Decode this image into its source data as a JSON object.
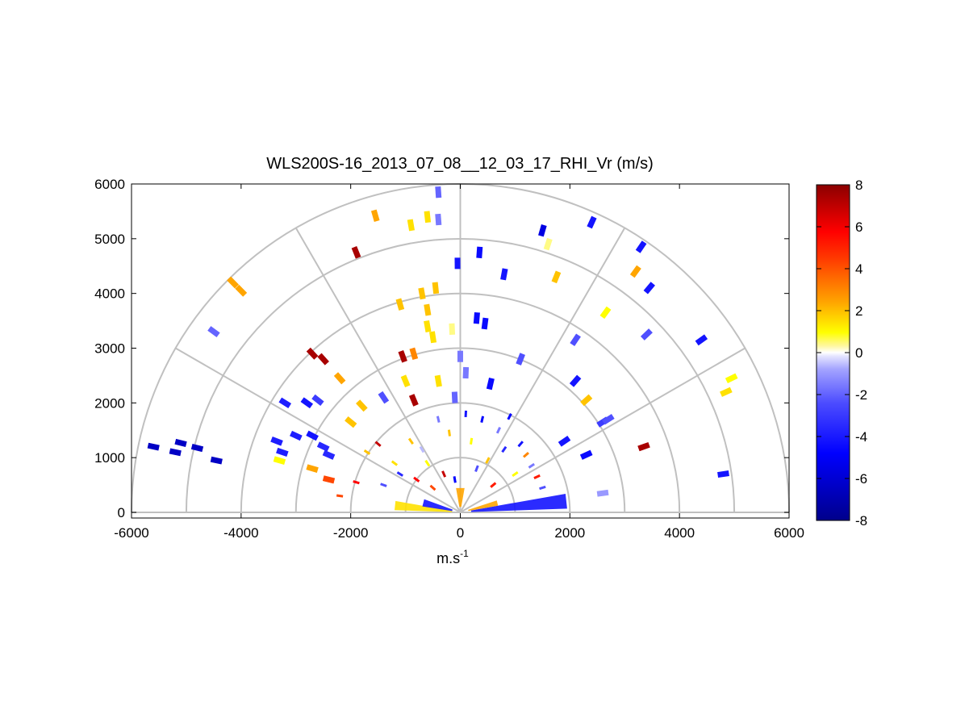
{
  "chart_data": {
    "type": "scatter",
    "subtype": "polar-rhi",
    "title": "WLS200S-16_2013_07_08__12_03_17_RHI_Vr (m/s)",
    "xlabel": "m.s",
    "xlabel_sup": "-1",
    "ylabel": "",
    "xlim": [
      -6000,
      6000
    ],
    "ylim": [
      0,
      6000
    ],
    "x_ticks": [
      "-6000",
      "-4000",
      "-2000",
      "0",
      "2000",
      "4000",
      "6000"
    ],
    "y_ticks": [
      "0",
      "1000",
      "2000",
      "3000",
      "4000",
      "5000",
      "6000"
    ],
    "range_rings": [
      1000,
      2000,
      3000,
      4000,
      5000,
      6000
    ],
    "spokes_deg": [
      0,
      30,
      60,
      90,
      120,
      150,
      180
    ],
    "colorbar": {
      "min": -8,
      "max": 8,
      "ticks": [
        "8",
        "6",
        "4",
        "2",
        "0",
        "-2",
        "-4",
        "-6",
        "-8"
      ],
      "colors": [
        "#00008b",
        "#0000ff",
        "#3f3fff",
        "#8a8aff",
        "#d9d9ff",
        "#ffffff",
        "#ffff00",
        "#ffa500",
        "#ff6a00",
        "#ff0000",
        "#8b0000"
      ]
    },
    "points": [
      {
        "x": -5600,
        "y": 1200,
        "v": -7
      },
      {
        "x": -5200,
        "y": 1100,
        "v": -7
      },
      {
        "x": -5100,
        "y": 1270,
        "v": -7
      },
      {
        "x": -4800,
        "y": 1180,
        "v": -7
      },
      {
        "x": -4450,
        "y": 950,
        "v": -7
      },
      {
        "x": -4500,
        "y": 3300,
        "v": -2.5
      },
      {
        "x": -4000,
        "y": 4050,
        "v": 2.5
      },
      {
        "x": -4150,
        "y": 4200,
        "v": 2.5
      },
      {
        "x": -3350,
        "y": 1300,
        "v": -4.5
      },
      {
        "x": -3250,
        "y": 1100,
        "v": -4.5
      },
      {
        "x": -3300,
        "y": 950,
        "v": 1
      },
      {
        "x": -3200,
        "y": 2000,
        "v": -4.5
      },
      {
        "x": -3000,
        "y": 1400,
        "v": -4.5
      },
      {
        "x": -2800,
        "y": 2000,
        "v": -5
      },
      {
        "x": -2700,
        "y": 1400,
        "v": -5
      },
      {
        "x": -2500,
        "y": 1200,
        "v": -4
      },
      {
        "x": -2400,
        "y": 1050,
        "v": -4
      },
      {
        "x": -2700,
        "y": 2900,
        "v": 7.5
      },
      {
        "x": -2500,
        "y": 2800,
        "v": 7.5
      },
      {
        "x": -2200,
        "y": 2450,
        "v": 2.5
      },
      {
        "x": -2700,
        "y": 800,
        "v": 2.5
      },
      {
        "x": -2400,
        "y": 600,
        "v": 4
      },
      {
        "x": -1900,
        "y": 4750,
        "v": 7.5
      },
      {
        "x": -1550,
        "y": 5420,
        "v": 2.5
      },
      {
        "x": -900,
        "y": 5250,
        "v": 1.5
      },
      {
        "x": -600,
        "y": 5400,
        "v": 1.5
      },
      {
        "x": -400,
        "y": 5350,
        "v": -2
      },
      {
        "x": -400,
        "y": 5850,
        "v": -2.5
      },
      {
        "x": -1100,
        "y": 3800,
        "v": 2
      },
      {
        "x": -700,
        "y": 4000,
        "v": 2
      },
      {
        "x": -450,
        "y": 4100,
        "v": 2
      },
      {
        "x": -600,
        "y": 3700,
        "v": 2
      },
      {
        "x": -600,
        "y": 3400,
        "v": 1.5
      },
      {
        "x": -500,
        "y": 3200,
        "v": 1.5
      },
      {
        "x": -1050,
        "y": 2850,
        "v": 7.5
      },
      {
        "x": -850,
        "y": 2900,
        "v": 3
      },
      {
        "x": -150,
        "y": 3350,
        "v": 0.5
      },
      {
        "x": -1000,
        "y": 2400,
        "v": 1.5
      },
      {
        "x": -400,
        "y": 2400,
        "v": 1.5
      },
      {
        "x": -1800,
        "y": 1950,
        "v": 2
      },
      {
        "x": -1400,
        "y": 2100,
        "v": -3
      },
      {
        "x": -2000,
        "y": 1650,
        "v": 2
      },
      {
        "x": -2600,
        "y": 2050,
        "v": -3.5
      },
      {
        "x": -850,
        "y": 2050,
        "v": 7.5
      },
      {
        "x": -100,
        "y": 2100,
        "v": -2.5
      },
      {
        "x": 100,
        "y": 2550,
        "v": -2
      },
      {
        "x": 550,
        "y": 2350,
        "v": -5.5
      },
      {
        "x": 0,
        "y": 2850,
        "v": -2
      },
      {
        "x": 300,
        "y": 3550,
        "v": -5.5
      },
      {
        "x": 450,
        "y": 3450,
        "v": -5.5
      },
      {
        "x": -50,
        "y": 4550,
        "v": -5
      },
      {
        "x": 350,
        "y": 4750,
        "v": -5.5
      },
      {
        "x": 800,
        "y": 4350,
        "v": -5
      },
      {
        "x": 1500,
        "y": 5150,
        "v": -6.5
      },
      {
        "x": 1600,
        "y": 4900,
        "v": 0.5
      },
      {
        "x": 1750,
        "y": 4300,
        "v": 2
      },
      {
        "x": 1100,
        "y": 2800,
        "v": -3
      },
      {
        "x": 2100,
        "y": 2400,
        "v": -5
      },
      {
        "x": 2300,
        "y": 2050,
        "v": 2
      },
      {
        "x": 2100,
        "y": 3150,
        "v": -3
      },
      {
        "x": 2650,
        "y": 3650,
        "v": 1
      },
      {
        "x": 2400,
        "y": 5300,
        "v": -5
      },
      {
        "x": 3300,
        "y": 4850,
        "v": -5
      },
      {
        "x": 3200,
        "y": 4400,
        "v": 2.5
      },
      {
        "x": 3450,
        "y": 4100,
        "v": -5
      },
      {
        "x": 3400,
        "y": 3250,
        "v": -3
      },
      {
        "x": 2600,
        "y": 1650,
        "v": -3.5
      },
      {
        "x": 2700,
        "y": 1700,
        "v": -3
      },
      {
        "x": 1900,
        "y": 1300,
        "v": -5
      },
      {
        "x": 2300,
        "y": 1050,
        "v": -5.5
      },
      {
        "x": 2600,
        "y": 350,
        "v": -1.5
      },
      {
        "x": 3350,
        "y": 1200,
        "v": 7.5
      },
      {
        "x": 4400,
        "y": 3150,
        "v": -5
      },
      {
        "x": 4850,
        "y": 2200,
        "v": 1.5
      },
      {
        "x": 4950,
        "y": 2450,
        "v": 1
      },
      {
        "x": 4800,
        "y": 700,
        "v": -5
      }
    ],
    "near_field": {
      "x": [
        -2200,
        -1900,
        -1700,
        -1500,
        -1400,
        -1200,
        -1100,
        -900,
        -800,
        -700,
        -600,
        -500,
        -400,
        -300,
        -200,
        -100,
        100,
        200,
        300,
        400,
        500,
        600,
        700,
        800,
        900,
        1000,
        1100,
        1200,
        1300,
        1400,
        1500
      ],
      "y": [
        300,
        550,
        1100,
        1250,
        500,
        900,
        700,
        1300,
        600,
        1150,
        900,
        450,
        1700,
        700,
        1450,
        600,
        1800,
        1300,
        800,
        1700,
        950,
        500,
        1500,
        1150,
        1750,
        700,
        1250,
        1050,
        850,
        650,
        450
      ],
      "v": [
        4,
        6,
        2,
        7,
        -3,
        1.5,
        -4,
        2,
        6,
        -1,
        1,
        4,
        -2,
        7,
        2,
        -6,
        -5,
        1,
        -3,
        -6,
        2,
        5,
        -2,
        -4,
        -6,
        1,
        -5,
        3,
        -2,
        5,
        -3
      ]
    },
    "ray_fans": [
      {
        "angle_from": 2,
        "angle_to": 10,
        "r_from": 200,
        "r_to": 1950,
        "v": -5
      },
      {
        "angle_from": 10,
        "angle_to": 18,
        "r_from": 150,
        "r_to": 700,
        "v": 2.5
      },
      {
        "angle_from": 170,
        "angle_to": 178,
        "r_from": 150,
        "r_to": 1200,
        "v": 1.5
      },
      {
        "angle_from": 160,
        "angle_to": 171,
        "r_from": 150,
        "r_to": 700,
        "v": -5
      },
      {
        "angle_from": 80,
        "angle_to": 100,
        "r_from": 100,
        "r_to": 450,
        "v": 2.5
      }
    ]
  }
}
